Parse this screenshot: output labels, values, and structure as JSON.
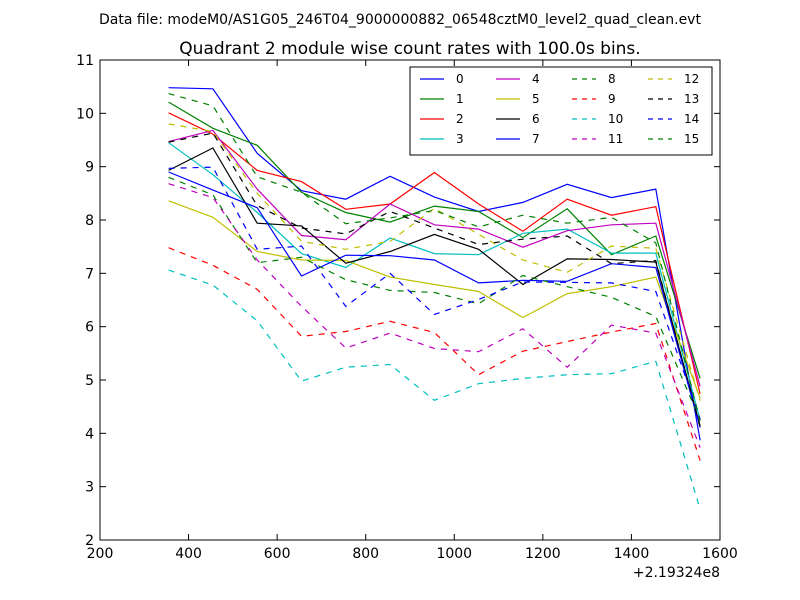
{
  "figure": {
    "suptitle": "Data file: modeM0/AS1G05_246T04_9000000882_06548cztM0_level2_quad_clean.evt"
  },
  "chart_data": {
    "type": "line",
    "title": "Quadrant 2 module wise count rates with 100.0s bins.",
    "xlabel": "",
    "ylabel": "",
    "x_offset_label": "+2.19324e8",
    "xlim": [
      200,
      1600
    ],
    "ylim": [
      2,
      11
    ],
    "xticks": [
      200,
      400,
      600,
      800,
      1000,
      1200,
      1400,
      1600
    ],
    "yticks": [
      2,
      3,
      4,
      5,
      6,
      7,
      8,
      9,
      10,
      11
    ],
    "grid": false,
    "legend": {
      "position": "top-right",
      "columns": 4
    },
    "x": [
      355,
      455,
      555,
      655,
      755,
      855,
      955,
      1055,
      1155,
      1255,
      1355,
      1455,
      1555
    ],
    "series": [
      {
        "name": "0",
        "color": "#0000ff",
        "dash": "solid",
        "values": [
          10.48,
          10.46,
          9.25,
          8.55,
          8.39,
          8.82,
          8.43,
          8.16,
          8.33,
          8.67,
          8.42,
          8.58,
          3.87
        ]
      },
      {
        "name": "1",
        "color": "#008000",
        "dash": "solid",
        "values": [
          10.21,
          9.72,
          9.4,
          8.52,
          8.14,
          7.96,
          8.26,
          8.16,
          7.67,
          8.21,
          7.35,
          7.7,
          5.03
        ]
      },
      {
        "name": "2",
        "color": "#ff0000",
        "dash": "solid",
        "values": [
          10.01,
          9.61,
          8.93,
          8.72,
          8.2,
          8.3,
          8.89,
          8.3,
          7.79,
          8.39,
          8.09,
          8.25,
          4.74
        ]
      },
      {
        "name": "3",
        "color": "#00bfbf",
        "dash": "solid",
        "values": [
          9.45,
          8.85,
          8.14,
          7.37,
          7.11,
          7.66,
          7.37,
          7.35,
          7.75,
          7.83,
          7.38,
          7.38,
          4.25
        ]
      },
      {
        "name": "4",
        "color": "#bf00bf",
        "dash": "solid",
        "values": [
          9.47,
          9.68,
          8.58,
          7.71,
          7.63,
          8.3,
          7.91,
          7.83,
          7.49,
          7.8,
          7.91,
          7.94,
          4.88
        ]
      },
      {
        "name": "5",
        "color": "#bfbf00",
        "dash": "solid",
        "values": [
          8.36,
          8.05,
          7.41,
          7.25,
          7.24,
          6.93,
          6.79,
          6.66,
          6.17,
          6.62,
          6.75,
          6.93,
          4.66
        ]
      },
      {
        "name": "6",
        "color": "#000000",
        "dash": "solid",
        "values": [
          8.93,
          9.35,
          7.94,
          7.89,
          7.19,
          7.41,
          7.73,
          7.45,
          6.79,
          7.27,
          7.26,
          7.21,
          4.14
        ]
      },
      {
        "name": "7",
        "color": "#0000ff",
        "dash": "solid",
        "values": [
          8.9,
          8.56,
          8.23,
          6.95,
          7.34,
          7.33,
          7.25,
          6.82,
          6.87,
          6.85,
          7.18,
          7.11,
          4.11
        ]
      },
      {
        "name": "8",
        "color": "#008000",
        "dash": "dashed",
        "values": [
          8.8,
          8.47,
          7.2,
          7.3,
          6.88,
          6.68,
          6.64,
          6.43,
          6.96,
          6.75,
          6.55,
          6.19,
          4.25
        ]
      },
      {
        "name": "9",
        "color": "#ff0000",
        "dash": "dashed",
        "values": [
          7.48,
          7.15,
          6.7,
          5.82,
          5.91,
          6.1,
          5.89,
          5.1,
          5.54,
          5.72,
          5.9,
          6.06,
          3.49
        ]
      },
      {
        "name": "10",
        "color": "#00bfbf",
        "dash": "dashed",
        "values": [
          7.06,
          6.78,
          6.11,
          4.98,
          5.24,
          5.29,
          4.62,
          4.93,
          5.03,
          5.1,
          5.12,
          5.35,
          2.58
        ]
      },
      {
        "name": "11",
        "color": "#bf00bf",
        "dash": "dashed",
        "values": [
          8.68,
          8.42,
          7.25,
          6.38,
          5.6,
          5.88,
          5.59,
          5.53,
          5.96,
          5.24,
          6.03,
          5.88,
          3.73
        ]
      },
      {
        "name": "12",
        "color": "#bfbf00",
        "dash": "dashed",
        "values": [
          9.8,
          9.66,
          8.5,
          7.6,
          7.45,
          7.6,
          8.22,
          7.73,
          7.25,
          7.02,
          7.51,
          7.47,
          4.61
        ]
      },
      {
        "name": "13",
        "color": "#000000",
        "dash": "dashed",
        "values": [
          9.46,
          9.63,
          8.27,
          7.85,
          7.74,
          8.16,
          7.85,
          7.54,
          7.64,
          7.7,
          7.18,
          7.24,
          4.12
        ]
      },
      {
        "name": "14",
        "color": "#0000ff",
        "dash": "dashed",
        "values": [
          8.97,
          8.99,
          7.45,
          7.51,
          6.38,
          7.0,
          6.23,
          6.51,
          6.84,
          6.83,
          6.82,
          6.66,
          4.27
        ]
      },
      {
        "name": "15",
        "color": "#008000",
        "dash": "dashed",
        "values": [
          10.37,
          10.14,
          8.81,
          8.52,
          7.93,
          8.04,
          8.18,
          7.87,
          8.09,
          7.94,
          8.05,
          7.57,
          4.22
        ]
      }
    ]
  }
}
